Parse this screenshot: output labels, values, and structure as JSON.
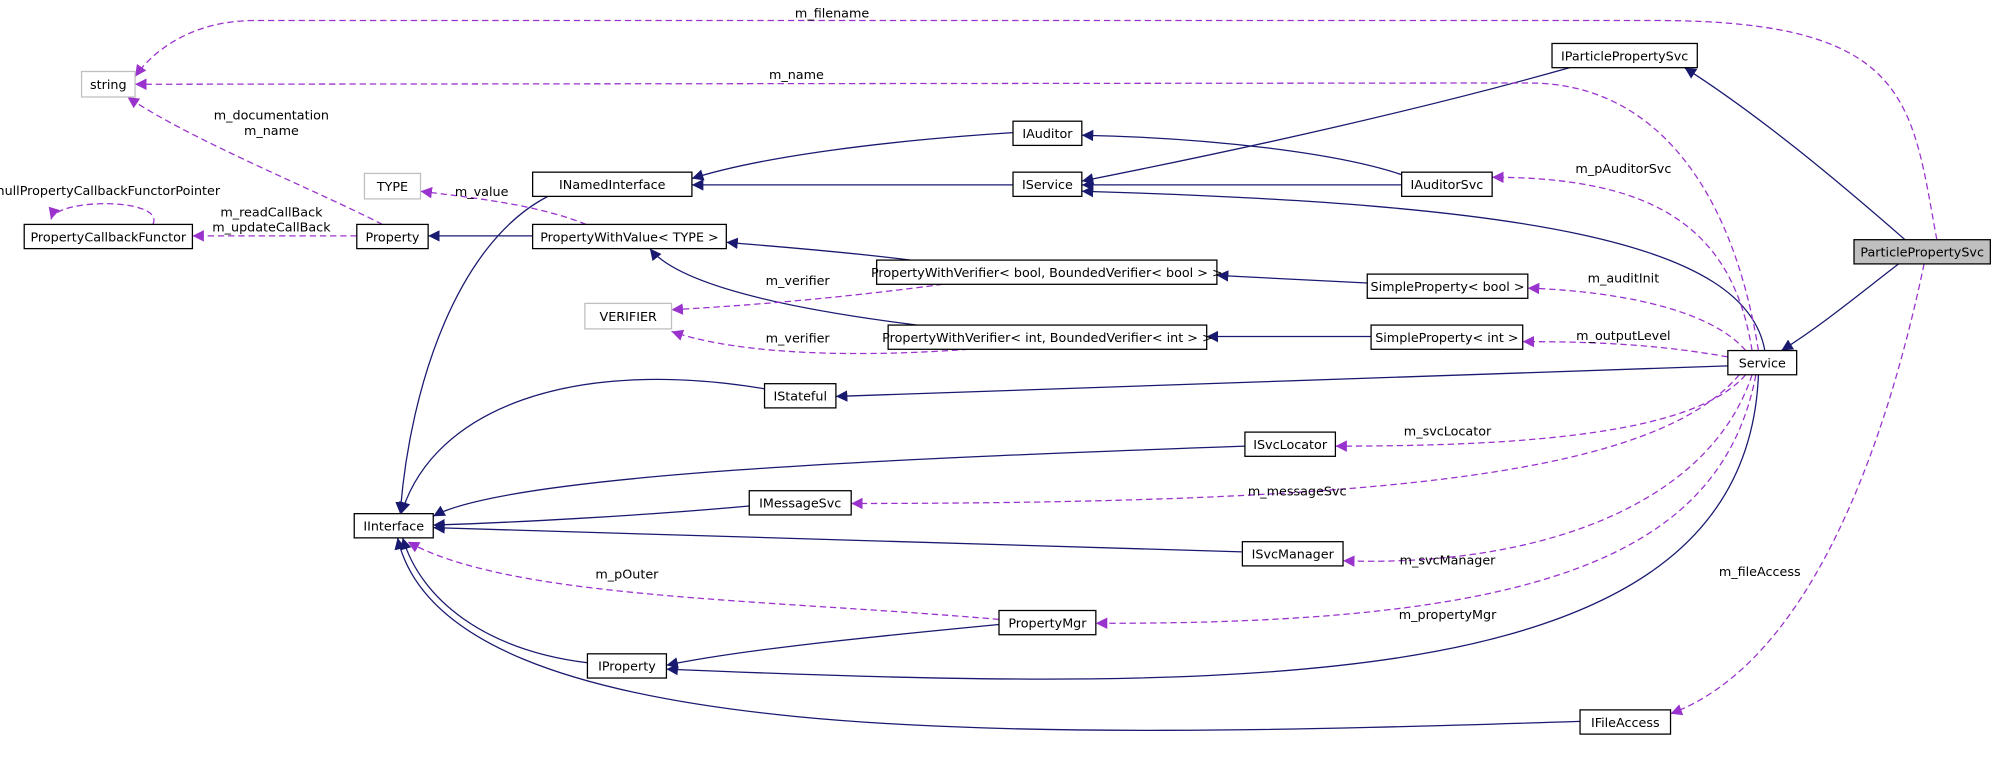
{
  "nodes": [
    {
      "label": "string"
    },
    {
      "label": "PropertyCallbackFunctor"
    },
    {
      "label": "TYPE"
    },
    {
      "label": "Property"
    },
    {
      "label": "INamedInterface"
    },
    {
      "label": "IAuditor"
    },
    {
      "label": "IService"
    },
    {
      "label": "IParticlePropertySvc"
    },
    {
      "label": "IAuditorSvc"
    },
    {
      "label": "PropertyWithValue< TYPE >"
    },
    {
      "label": "PropertyWithVerifier< bool, BoundedVerifier< bool > >"
    },
    {
      "label": "SimpleProperty< bool >"
    },
    {
      "label": "VERIFIER"
    },
    {
      "label": "PropertyWithVerifier< int, BoundedVerifier< int > >"
    },
    {
      "label": "SimpleProperty< int >"
    },
    {
      "label": "ParticlePropertySvc"
    },
    {
      "label": "Service"
    },
    {
      "label": "IStateful"
    },
    {
      "label": "ISvcLocator"
    },
    {
      "label": "IMessageSvc"
    },
    {
      "label": "IInterface"
    },
    {
      "label": "ISvcManager"
    },
    {
      "label": "PropertyMgr"
    },
    {
      "label": "IProperty"
    },
    {
      "label": "IFileAccess"
    }
  ],
  "edges": [
    {
      "labels": [
        "m_filename"
      ]
    },
    {
      "labels": [
        "m_name"
      ]
    },
    {
      "labels": [
        "m_documentation",
        "m_name"
      ]
    },
    {
      "labels": [
        "nullPropertyCallbackFunctorPointer"
      ]
    },
    {
      "labels": [
        "m_readCallBack",
        "m_updateCallBack"
      ]
    },
    {
      "labels": [
        "m_value"
      ]
    },
    {
      "labels": [
        "m_verifier"
      ]
    },
    {
      "labels": [
        "m_verifier"
      ]
    },
    {
      "labels": [
        "m_pAuditorSvc"
      ]
    },
    {
      "labels": [
        "m_auditInit"
      ]
    },
    {
      "labels": [
        "m_outputLevel"
      ]
    },
    {
      "labels": [
        "m_svcLocator"
      ]
    },
    {
      "labels": [
        "m_messageSvc"
      ]
    },
    {
      "labels": [
        "m_svcManager"
      ]
    },
    {
      "labels": [
        "m_propertyMgr"
      ]
    },
    {
      "labels": [
        "m_pOuter"
      ]
    },
    {
      "labels": [
        "m_fileAccess"
      ]
    }
  ]
}
